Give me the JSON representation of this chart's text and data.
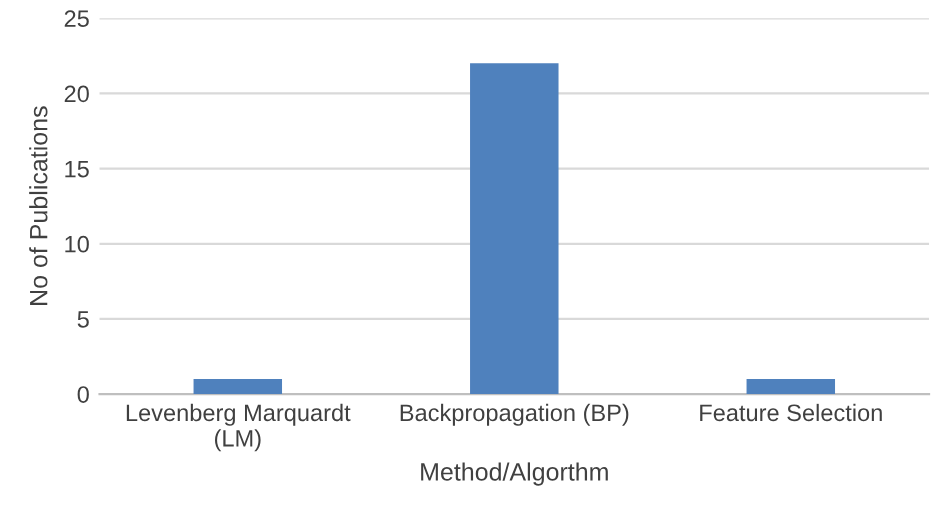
{
  "chart_data": {
    "type": "bar",
    "categories": [
      "Levenberg Marquardt (LM)",
      "Backpropagation (BP)",
      "Feature Selection"
    ],
    "values": [
      1,
      22,
      1
    ],
    "color": "#4f81bd",
    "xlabel": "Method/Algorthm",
    "ylabel": "No of Publications",
    "ylim": [
      0,
      25
    ],
    "yticks": [
      0,
      5,
      10,
      15,
      20,
      25
    ],
    "grid": "y"
  }
}
